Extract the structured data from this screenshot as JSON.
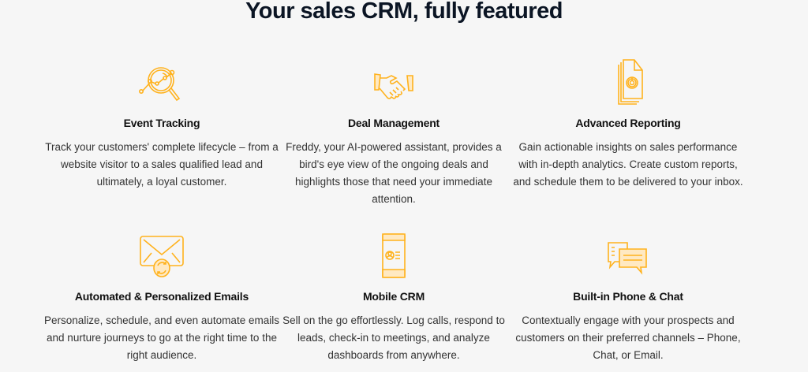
{
  "heading": "Your sales CRM, fully featured",
  "accent_color": "#ffb21d",
  "features": [
    {
      "icon": "magnifier-analytics-icon",
      "title": "Event Tracking",
      "description": "Track your customers' complete lifecycle – from a website visitor to a sales qualified lead and ultimately, a loyal customer."
    },
    {
      "icon": "handshake-icon",
      "title": "Deal Management",
      "description": "Freddy, your AI-powered assistant, provides a bird's eye view of the ongoing deals and highlights those that need your immediate attention."
    },
    {
      "icon": "report-documents-icon",
      "title": "Advanced Reporting",
      "description": "Gain actionable insights on sales performance with in-depth analytics. Create custom reports, and schedule them to be delivered to your inbox."
    },
    {
      "icon": "email-sync-icon",
      "title": "Automated & Personalized Emails",
      "description": "Personalize, schedule, and even automate emails and nurture journeys to go at the right time to the right audience."
    },
    {
      "icon": "mobile-contact-icon",
      "title": "Mobile CRM",
      "description": "Sell on the go effortlessly. Log calls, respond to leads, check-in to meetings, and analyze dashboards from anywhere."
    },
    {
      "icon": "chat-bubbles-icon",
      "title": "Built-in Phone & Chat",
      "description": "Contextually engage with your prospects and customers on their preferred channels – Phone, Chat, or Email."
    }
  ]
}
